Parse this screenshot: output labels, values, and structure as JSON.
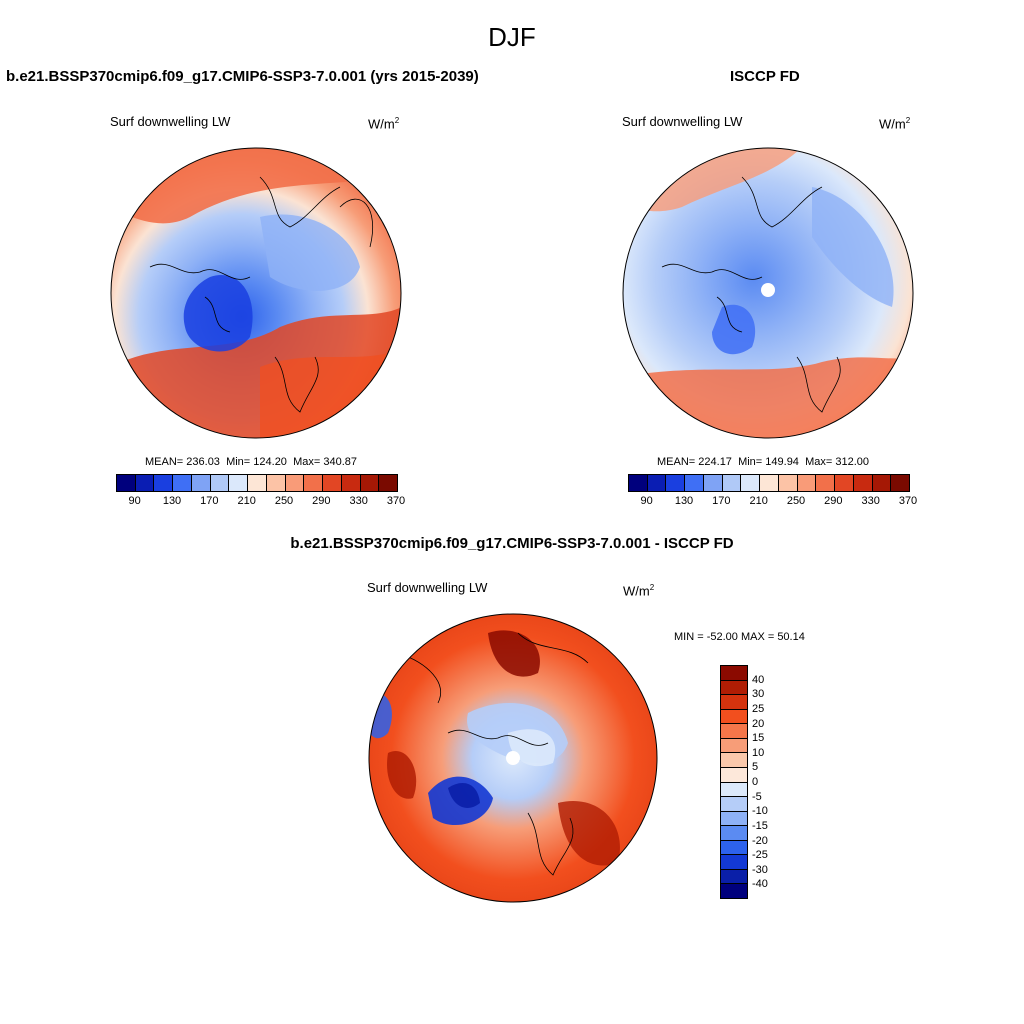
{
  "main_title": "DJF",
  "top_left": {
    "title": "b.e21.BSSP370cmip6.f09_g17.CMIP6-SSP3-7.0.001 (yrs 2015-2039)",
    "variable": "Surf downwelling LW",
    "units": "W/m",
    "units_exp": "2",
    "stats": {
      "mean_label": "MEAN=",
      "mean": "236.03",
      "min_label": "Min=",
      "min": "124.20",
      "max_label": "Max=",
      "max": "340.87"
    }
  },
  "top_right": {
    "title": "ISCCP FD",
    "variable": "Surf downwelling LW",
    "units": "W/m",
    "units_exp": "2",
    "stats": {
      "mean_label": "MEAN=",
      "mean": "224.17",
      "min_label": "Min=",
      "min": "149.94",
      "max_label": "Max=",
      "max": "312.00"
    }
  },
  "bottom": {
    "title": "b.e21.BSSP370cmip6.f09_g17.CMIP6-SSP3-7.0.001 - ISCCP FD",
    "variable": "Surf downwelling LW",
    "units": "W/m",
    "units_exp": "2",
    "minmax": "MIN = -52.00 MAX =  50.14"
  },
  "abs_colorbar": {
    "colors": [
      "#00007d",
      "#0a1db3",
      "#1a3fe0",
      "#3f6ff5",
      "#7fa3f5",
      "#b0c9f7",
      "#dbe8fb",
      "#fde6d6",
      "#fcc3a6",
      "#f99b78",
      "#f2704a",
      "#e24624",
      "#c82a10",
      "#a51805",
      "#7a0a00"
    ],
    "tick_labels": [
      "90",
      "130",
      "170",
      "210",
      "250",
      "290",
      "330",
      "370"
    ]
  },
  "diff_colorbar": {
    "colors": [
      "#8b0a00",
      "#b01d04",
      "#d5330e",
      "#f24f1e",
      "#f5764a",
      "#f79d78",
      "#fac8ab",
      "#fde8da",
      "#dce9fb",
      "#b5cdf8",
      "#8eb1f6",
      "#5b8bf2",
      "#2d62ec",
      "#1339d4",
      "#0a1fa8",
      "#00007d"
    ],
    "tick_labels": [
      "40",
      "30",
      "25",
      "20",
      "15",
      "10",
      "5",
      "0",
      "-5",
      "-10",
      "-15",
      "-20",
      "-25",
      "-30",
      "-40"
    ]
  }
}
